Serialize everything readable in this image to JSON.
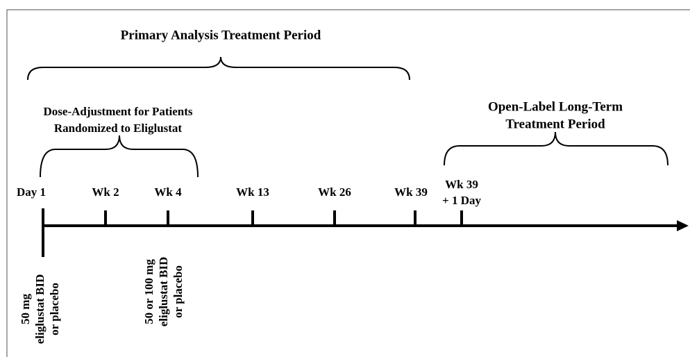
{
  "periods": {
    "primary": "Primary Analysis Treatment Period",
    "dose_adjustment": [
      "Dose-Adjustment for Patients",
      "Randomized to Eliglustat"
    ],
    "open_label": [
      "Open-Label Long-Term",
      "Treatment Period"
    ]
  },
  "timepoints": [
    "Day 1",
    "Wk 2",
    "Wk 4",
    "Wk 13",
    "Wk 26",
    "Wk 39",
    [
      "Wk 39",
      "+ 1 Day"
    ]
  ],
  "notes": [
    [
      "50 mg",
      "eliglustat BID",
      "or placebo"
    ],
    [
      "50 or 100 mg",
      "eliglustat BID",
      "or placebo"
    ]
  ]
}
